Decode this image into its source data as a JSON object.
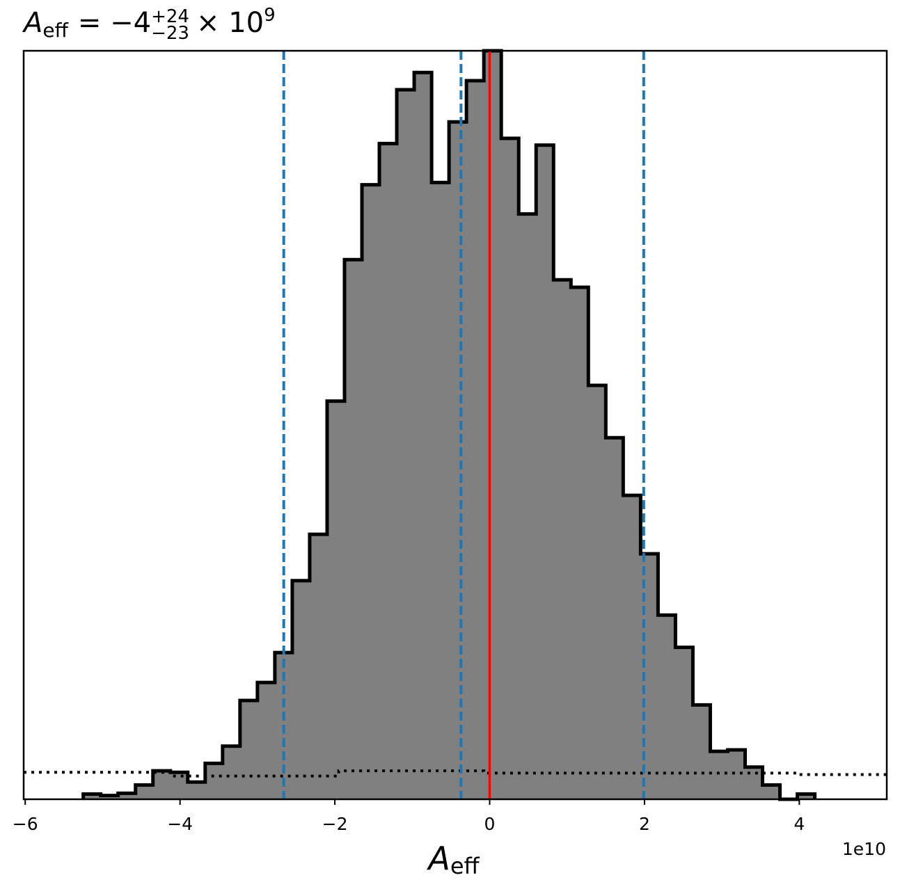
{
  "chart_data": {
    "type": "histogram",
    "title": {
      "symbol": "A",
      "symbol_sub": "eff",
      "equals": "= −4",
      "sup": "+24",
      "sub": "−23",
      "times": "× 10",
      "exp": "9"
    },
    "xlabel": {
      "symbol": "A",
      "sub": "eff"
    },
    "x_offset_label": "1e10",
    "xlim": [
      -6.02,
      5.13
    ],
    "ylim": [
      0,
      1.0
    ],
    "x_ticks": [
      {
        "value": -6,
        "label": "−6"
      },
      {
        "value": -4,
        "label": "−4"
      },
      {
        "value": -2,
        "label": "−2"
      },
      {
        "value": 0,
        "label": "0"
      },
      {
        "value": 2,
        "label": "2"
      },
      {
        "value": 4,
        "label": "4"
      }
    ],
    "histogram": {
      "bin_edges": [
        -5.25,
        -5.025,
        -4.8,
        -4.575,
        -4.35,
        -4.125,
        -3.9,
        -3.675,
        -3.45,
        -3.225,
        -3.0,
        -2.775,
        -2.55,
        -2.325,
        -2.1,
        -1.875,
        -1.65,
        -1.425,
        -1.2,
        -0.975,
        -0.75,
        -0.525,
        -0.3,
        -0.075,
        0.15,
        0.375,
        0.6,
        0.825,
        1.05,
        1.275,
        1.5,
        1.725,
        1.95,
        2.175,
        2.4,
        2.625,
        2.85,
        3.075,
        3.3,
        3.525,
        3.75,
        3.975,
        4.2
      ],
      "counts": [
        0.007,
        0.005,
        0.008,
        0.019,
        0.038,
        0.036,
        0.023,
        0.048,
        0.071,
        0.132,
        0.156,
        0.196,
        0.292,
        0.354,
        0.532,
        0.721,
        0.821,
        0.876,
        0.948,
        0.971,
        0.824,
        0.905,
        0.96,
        1.0,
        0.883,
        0.782,
        0.874,
        0.694,
        0.684,
        0.553,
        0.483,
        0.406,
        0.328,
        0.246,
        0.203,
        0.126,
        0.064,
        0.066,
        0.043,
        0.019,
        0.0,
        0.007
      ],
      "fill": "#808080",
      "edge": "#000000"
    },
    "prior": {
      "style": "dotted",
      "color": "#000000",
      "points": [
        [
          -6.02,
          0.036
        ],
        [
          -4.125,
          0.036
        ],
        [
          -4.125,
          0.031
        ],
        [
          -1.95,
          0.031
        ],
        [
          -1.95,
          0.038
        ],
        [
          -0.075,
          0.038
        ],
        [
          -0.075,
          0.035
        ],
        [
          4.0,
          0.035
        ],
        [
          4.0,
          0.033
        ],
        [
          5.13,
          0.033
        ]
      ]
    },
    "quantile_lines": {
      "values": [
        -2.66,
        -0.37,
        1.99
      ],
      "color": "#1f77b4",
      "style": "dashed"
    },
    "truth_line": {
      "value": 0.0,
      "color": "#ff0000"
    }
  }
}
